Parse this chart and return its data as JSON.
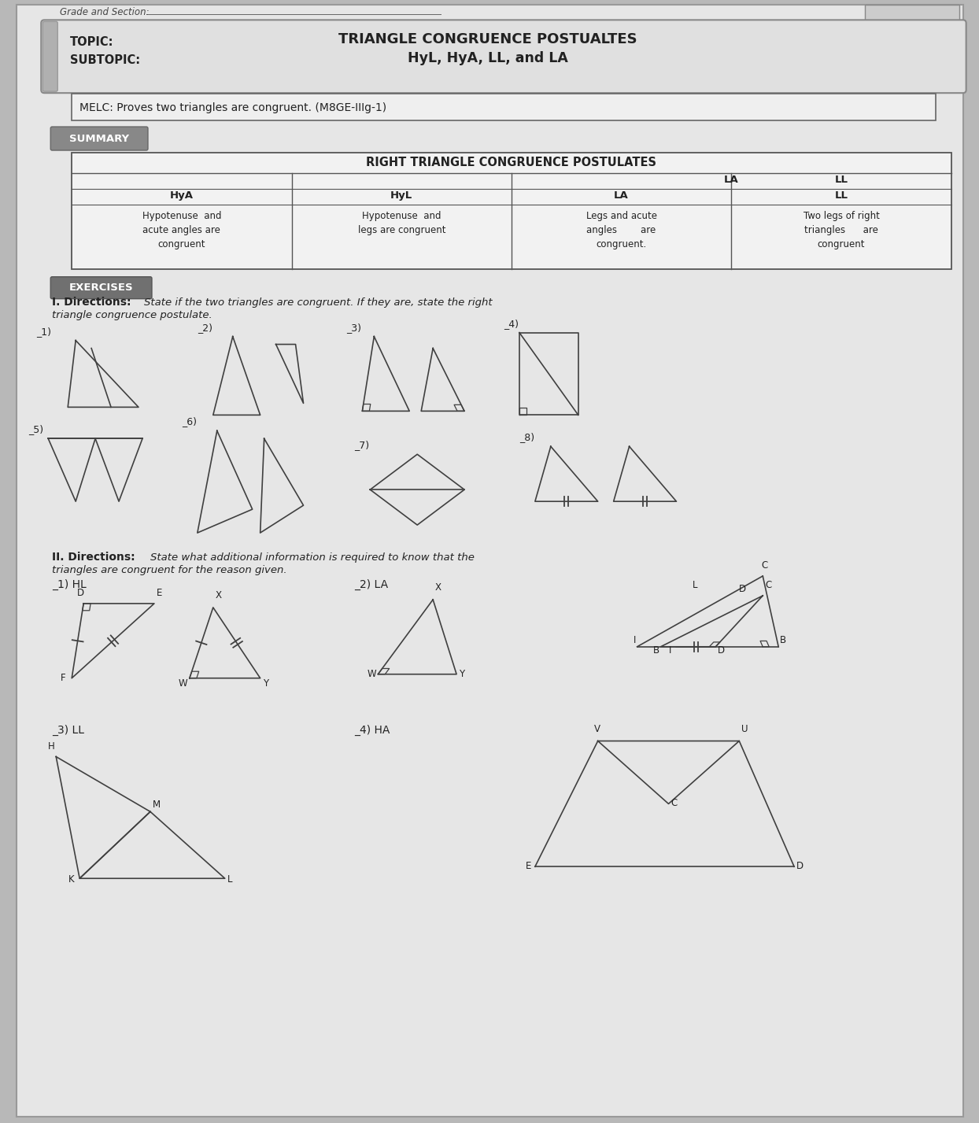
{
  "bg_color": "#b8b8b8",
  "paper_color": "#e8e8e8",
  "title_topic": "TRIANGLE CONGRUENCE POSTUALTES",
  "title_subtopic": "HyL, HyA, LL, and LA",
  "melc_text": "MELC: Proves two triangles are congruent. (M8GE-IIIg-1)",
  "summary_label": "SUMMARY",
  "exercises_label": "EXERCISES",
  "table_title": "RIGHT TRIANGLE CONGRUENCE POSTULATES",
  "table_headers": [
    "HyA",
    "HyL",
    "LA",
    "LL"
  ],
  "table_contents": [
    "Hypotenuse  and\nacute angles are\ncongruent",
    "Hypotenuse  and\nlegs are congruent",
    "Legs and acute\nangles        are\ncongruent.",
    "Two legs of right\ntriangles      are\ncongruent"
  ],
  "grade_section_label": "Grade and Section:",
  "line_color": "#404040",
  "text_color": "#222222"
}
